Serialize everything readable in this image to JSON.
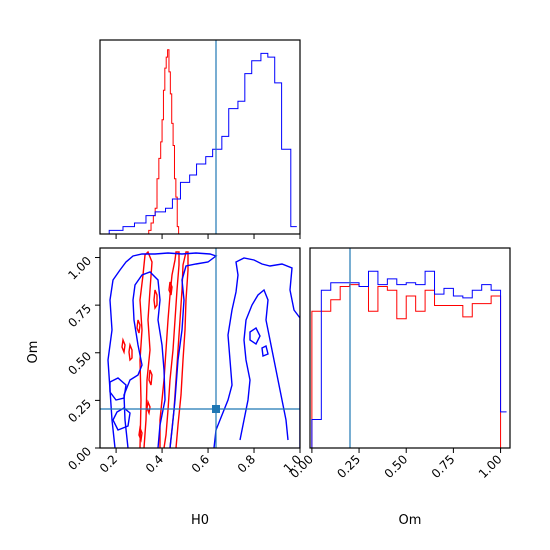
{
  "chart_data": {
    "type": "corner",
    "colors": {
      "red": "#ff0000",
      "blue": "#0000ff",
      "truth": "#1f77b4"
    },
    "truth": {
      "H0": 0.64,
      "Om": 0.2
    },
    "panels": {
      "hist_H0": {
        "type": "histogram",
        "x_range": [
          0.13,
          1.0
        ],
        "ticks": [
          0.2,
          0.4,
          0.6,
          0.8,
          1.0
        ],
        "series": [
          {
            "color": "red",
            "bins": [
              [
                0.326,
                0.0
              ],
              [
                0.342,
                0.02
              ],
              [
                0.352,
                0.06
              ],
              [
                0.362,
                0.1
              ],
              [
                0.37,
                0.14
              ],
              [
                0.378,
                0.3
              ],
              [
                0.386,
                0.41
              ],
              [
                0.394,
                0.5
              ],
              [
                0.4,
                0.62
              ],
              [
                0.406,
                0.78
              ],
              [
                0.412,
                0.9
              ],
              [
                0.418,
                0.96
              ],
              [
                0.424,
                1.0
              ],
              [
                0.43,
                0.88
              ],
              [
                0.436,
                0.76
              ],
              [
                0.442,
                0.6
              ],
              [
                0.448,
                0.48
              ],
              [
                0.454,
                0.3
              ],
              [
                0.46,
                0.2
              ],
              [
                0.466,
                0.04
              ],
              [
                0.472,
                0.0
              ]
            ]
          },
          {
            "color": "blue",
            "bins": [
              [
                0.17,
                0.02
              ],
              [
                0.23,
                0.04
              ],
              [
                0.28,
                0.06
              ],
              [
                0.33,
                0.1
              ],
              [
                0.37,
                0.12
              ],
              [
                0.415,
                0.14
              ],
              [
                0.445,
                0.19
              ],
              [
                0.48,
                0.28
              ],
              [
                0.52,
                0.32
              ],
              [
                0.55,
                0.38
              ],
              [
                0.59,
                0.42
              ],
              [
                0.62,
                0.46
              ],
              [
                0.66,
                0.53
              ],
              [
                0.69,
                0.68
              ],
              [
                0.73,
                0.72
              ],
              [
                0.76,
                0.87
              ],
              [
                0.79,
                0.94
              ],
              [
                0.83,
                0.98
              ],
              [
                0.86,
                0.96
              ],
              [
                0.89,
                0.82
              ],
              [
                0.92,
                0.46
              ],
              [
                0.96,
                0.04
              ]
            ]
          }
        ]
      },
      "contour_H0_Om": {
        "type": "contour",
        "xlabel": "H0",
        "ylabel": "Om",
        "x_range": [
          0.13,
          1.0
        ],
        "y_range": [
          0.0,
          1.05
        ],
        "x_ticks": [
          0.2,
          0.4,
          0.6,
          0.8,
          1.0
        ],
        "y_ticks": [
          0.0,
          0.25,
          0.5,
          0.75,
          1.0
        ],
        "series": [
          {
            "color": "red",
            "levels": 2,
            "H0_center": 0.4
          },
          {
            "color": "blue",
            "levels": 2,
            "H0_regions": [
              [
                0.13,
                0.32
              ],
              [
                0.62,
                1.0
              ]
            ]
          }
        ]
      },
      "hist_Om": {
        "type": "histogram",
        "xlabel": "Om",
        "x_range": [
          -0.01,
          1.05
        ],
        "ticks": [
          0.0,
          0.25,
          0.5,
          0.75,
          1.0
        ],
        "series": [
          {
            "color": "red",
            "bins": [
              [
                0.0,
                0.72
              ],
              [
                0.05,
                0.72
              ],
              [
                0.1,
                0.78
              ],
              [
                0.15,
                0.85
              ],
              [
                0.2,
                0.86
              ],
              [
                0.25,
                0.85
              ],
              [
                0.3,
                0.72
              ],
              [
                0.35,
                0.85
              ],
              [
                0.4,
                0.83
              ],
              [
                0.45,
                0.68
              ],
              [
                0.5,
                0.8
              ],
              [
                0.55,
                0.72
              ],
              [
                0.6,
                0.83
              ],
              [
                0.65,
                0.75
              ],
              [
                0.7,
                0.75
              ],
              [
                0.75,
                0.75
              ],
              [
                0.8,
                0.69
              ],
              [
                0.85,
                0.76
              ],
              [
                0.9,
                0.76
              ],
              [
                0.95,
                0.8
              ],
              [
                1.0,
                0.0
              ]
            ]
          },
          {
            "color": "blue",
            "bins": [
              [
                0.0,
                0.15
              ],
              [
                0.05,
                0.83
              ],
              [
                0.1,
                0.87
              ],
              [
                0.15,
                0.87
              ],
              [
                0.2,
                0.87
              ],
              [
                0.25,
                0.85
              ],
              [
                0.3,
                0.93
              ],
              [
                0.35,
                0.86
              ],
              [
                0.4,
                0.89
              ],
              [
                0.45,
                0.86
              ],
              [
                0.5,
                0.87
              ],
              [
                0.55,
                0.86
              ],
              [
                0.6,
                0.93
              ],
              [
                0.65,
                0.81
              ],
              [
                0.7,
                0.84
              ],
              [
                0.75,
                0.8
              ],
              [
                0.8,
                0.79
              ],
              [
                0.85,
                0.83
              ],
              [
                0.9,
                0.86
              ],
              [
                0.95,
                0.83
              ],
              [
                1.0,
                0.19
              ]
            ]
          }
        ]
      }
    }
  }
}
